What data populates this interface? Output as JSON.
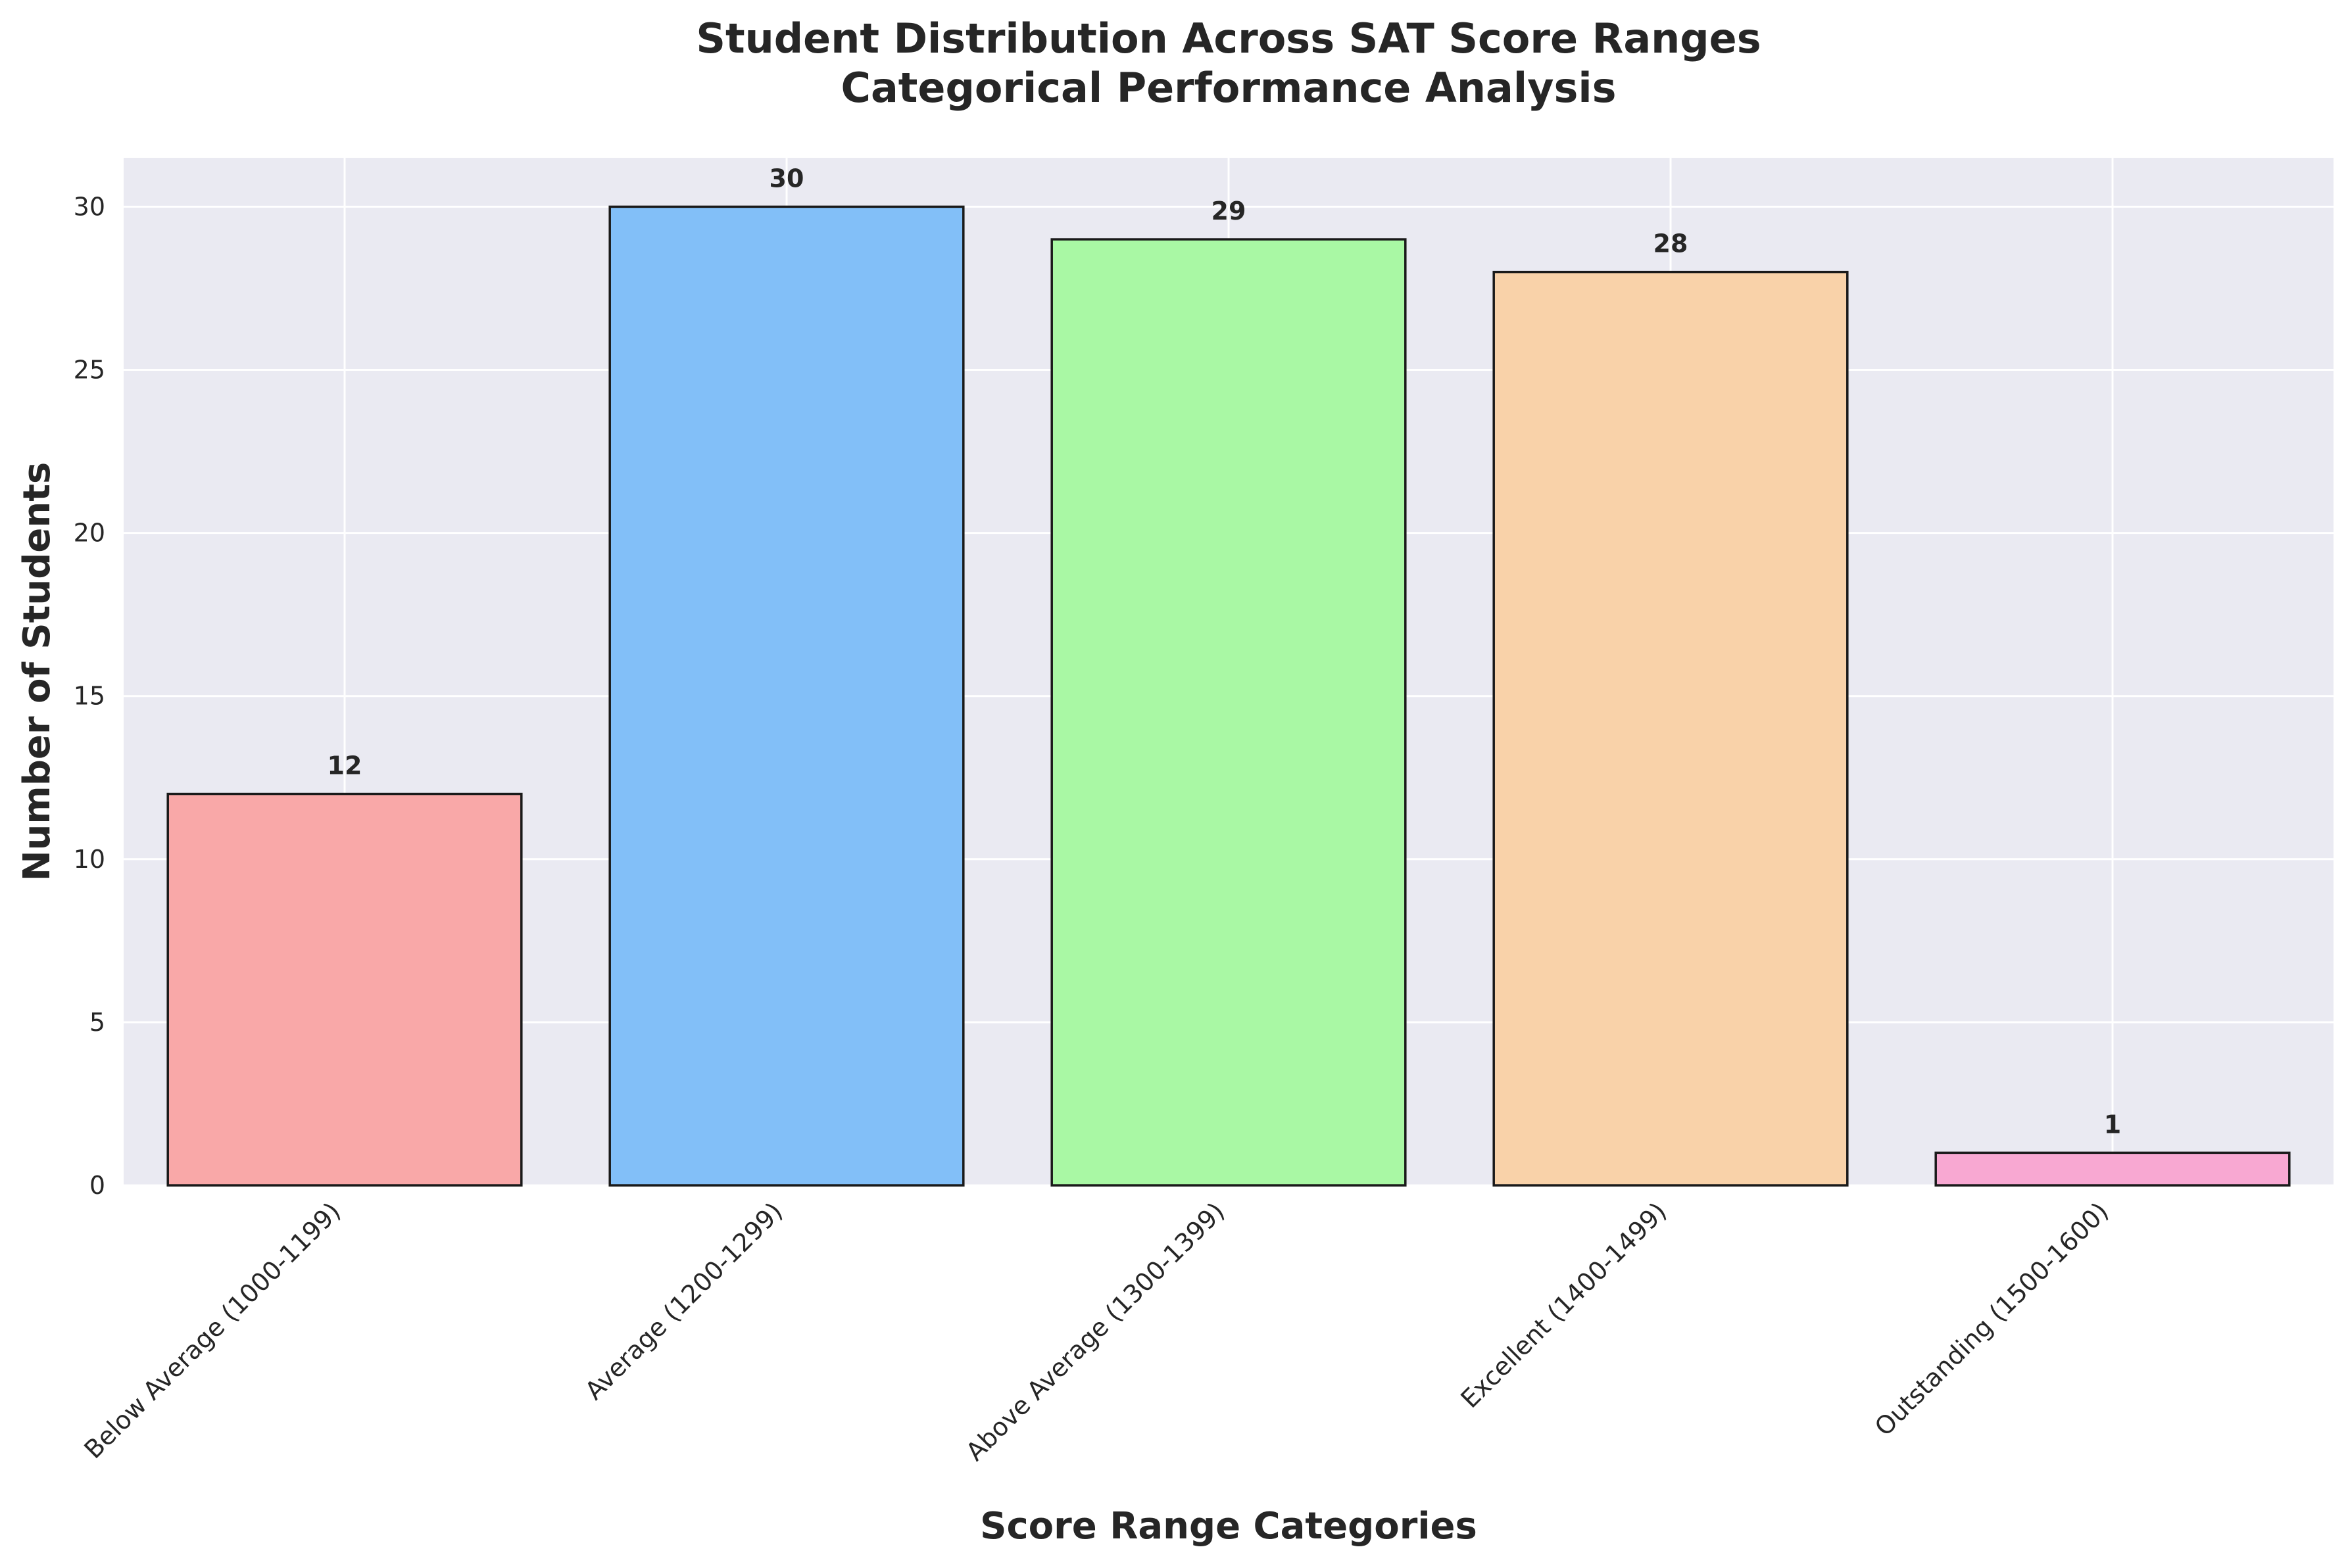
{
  "chart_data": {
    "type": "bar",
    "title_lines": [
      "Student Distribution Across SAT Score Ranges",
      "Categorical Performance Analysis"
    ],
    "xlabel": "Score Range Categories",
    "ylabel": "Number of Students",
    "categories": [
      "Below Average (1000-1199)",
      "Average (1200-1299)",
      "Above Average (1300-1399)",
      "Excellent (1400-1499)",
      "Outstanding (1500-1600)"
    ],
    "values": [
      12,
      30,
      29,
      28,
      1
    ],
    "data_labels": [
      "12",
      "30",
      "29",
      "28",
      "1"
    ],
    "colors": [
      "#F9A8A8",
      "#82BFF8",
      "#A9F8A4",
      "#F9D2A9",
      "#F8A8D2"
    ],
    "ylim": [
      0,
      31.5
    ],
    "yticks": [
      0,
      5,
      10,
      15,
      20,
      25,
      30
    ],
    "ytick_labels": [
      "0",
      "5",
      "10",
      "15",
      "20",
      "25",
      "30"
    ],
    "grid": true,
    "background_color": "#EAEAF2",
    "edge_color": "#1a1a1a"
  }
}
